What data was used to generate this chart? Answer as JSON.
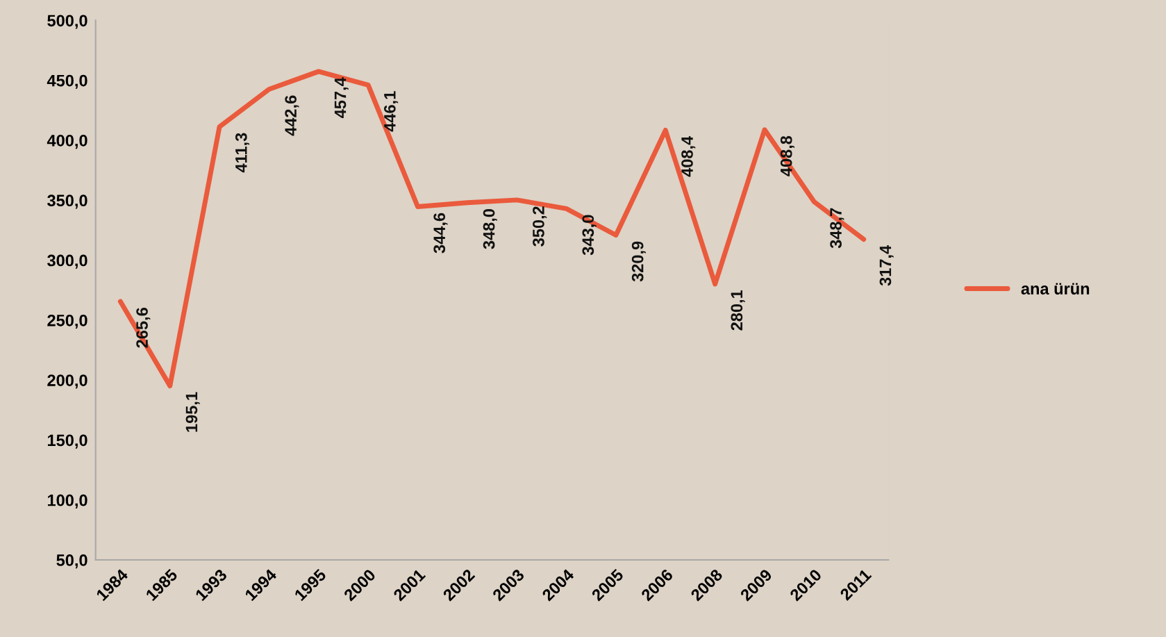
{
  "chart_data": {
    "type": "line",
    "categories": [
      "1984",
      "1985",
      "1993",
      "1994",
      "1995",
      "2000",
      "2001",
      "2002",
      "2003",
      "2004",
      "2005",
      "2006",
      "2008",
      "2009",
      "2010",
      "2011"
    ],
    "series": [
      {
        "name": "ana ürün",
        "color": "#ea5a3c",
        "values": [
          265.6,
          195.1,
          411.3,
          442.6,
          457.4,
          446.1,
          344.6,
          348.0,
          350.2,
          343.0,
          320.9,
          408.4,
          280.1,
          408.8,
          348.7,
          317.4
        ],
        "value_labels": [
          "265,6",
          "195,1",
          "411,3",
          "442,6",
          "457,4",
          "446,1",
          "344,6",
          "348,0",
          "350,2",
          "343,0",
          "320,9",
          "408,4",
          "280,1",
          "408,8",
          "348,7",
          "317,4"
        ]
      }
    ],
    "ylim": [
      50,
      500
    ],
    "yticks": [
      {
        "value": 50,
        "label": "50,0"
      },
      {
        "value": 100,
        "label": "100,0"
      },
      {
        "value": 150,
        "label": "150,0"
      },
      {
        "value": 200,
        "label": "200,0"
      },
      {
        "value": 250,
        "label": "250,0"
      },
      {
        "value": 300,
        "label": "300,0"
      },
      {
        "value": 350,
        "label": "350,0"
      },
      {
        "value": 400,
        "label": "400,0"
      },
      {
        "value": 450,
        "label": "450,0"
      },
      {
        "value": 500,
        "label": "500,0"
      }
    ],
    "legend": "right"
  }
}
